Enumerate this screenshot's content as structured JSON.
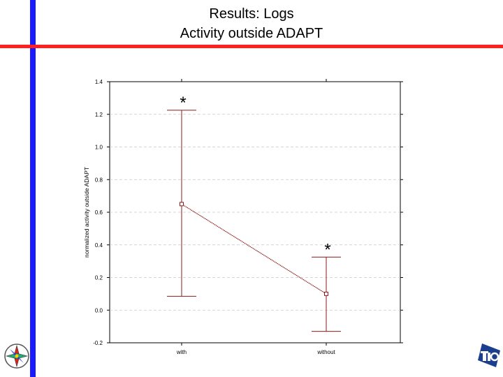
{
  "slide": {
    "title_line1": "Results: Logs",
    "title_line2": "Activity outside ADAPT",
    "accent_blue": "#1a1aff",
    "accent_red": "#ff2020",
    "logo_left_icon": "compass-logo-icon",
    "logo_right_icon": "tno-logo-icon"
  },
  "chart_data": {
    "type": "line",
    "categories": [
      "with",
      "without"
    ],
    "values": [
      0.65,
      0.1
    ],
    "error_low": [
      0.085,
      -0.13
    ],
    "error_high": [
      1.225,
      0.325
    ],
    "annotations": [
      "*",
      "*"
    ],
    "xlabel": "",
    "ylabel": "normalized activity outside ADAPT",
    "ylim": [
      -0.2,
      1.4
    ],
    "yticks": [
      -0.2,
      0.0,
      0.2,
      0.4,
      0.6,
      0.8,
      1.0,
      1.2,
      1.4
    ],
    "ytick_labels": [
      "-0.2",
      "0.0",
      "0.2",
      "0.4",
      "0.6",
      "0.8",
      "1.0",
      "1.2",
      "1.4"
    ],
    "grid": true,
    "line_color": "#8b1a1a"
  }
}
